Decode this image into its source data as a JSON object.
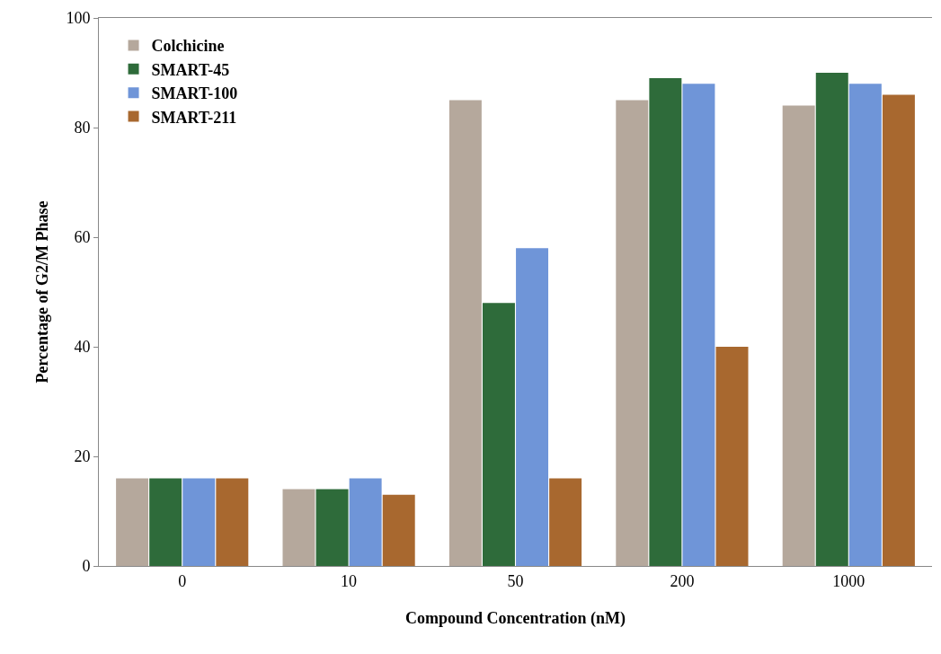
{
  "chart_data": {
    "type": "bar",
    "xlabel": "Compound Concentration (nM)",
    "ylabel": "Percentage of G2/M Phase",
    "categories": [
      "0",
      "10",
      "50",
      "200",
      "1000"
    ],
    "series": [
      {
        "name": "Colchicine",
        "color": "#b5a89c",
        "values": [
          16,
          14,
          85,
          85,
          84
        ]
      },
      {
        "name": "SMART-45",
        "color": "#2e6b3a",
        "values": [
          16,
          14,
          48,
          89,
          90
        ]
      },
      {
        "name": "SMART-100",
        "color": "#6f95d8",
        "values": [
          16,
          16,
          58,
          88,
          88
        ]
      },
      {
        "name": "SMART-211",
        "color": "#a8682f",
        "values": [
          16,
          13,
          16,
          40,
          86
        ]
      }
    ],
    "ylim": [
      0,
      100
    ],
    "yticks": [
      0,
      20,
      40,
      60,
      80,
      100
    ],
    "legend": "top left"
  }
}
